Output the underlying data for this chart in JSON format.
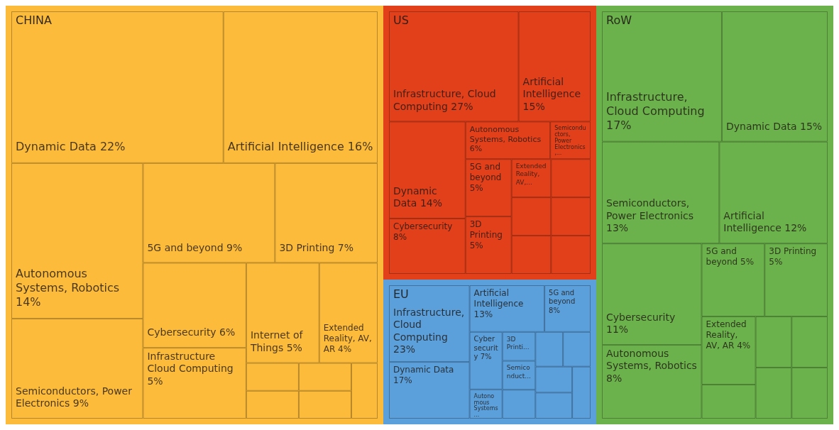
{
  "chart_data": {
    "type": "other",
    "annotations": [
      "CHINA",
      "US",
      "EU",
      "RoW"
    ],
    "categories": [
      "Dynamic Data",
      "Artificial Intelligence",
      "Autonomous Systems, Robotics",
      "Semiconductors, Power Electronics",
      "5G and beyond",
      "3D Printing",
      "Cybersecurity",
      "Infrastructure Cloud Computing",
      "Internet of Things",
      "Extended Reality, AV, AR",
      null,
      null,
      null,
      null,
      null,
      "Infrastructure, Cloud Computing",
      "Artificial Intelligence",
      "Dynamic Data",
      "Cybersecurity",
      "Autonomous Systems, Robotics",
      "Semiconductors, Power Electronics,...",
      "5G and beyond",
      "3D Printing",
      "Extended Reality, AV,...",
      null,
      null,
      null,
      null,
      null,
      "Infrastructure, Cloud Computing",
      "Dynamic Data",
      "Artificial Intelligence",
      "5G and beyond",
      "Cybersecurity",
      "Autonomous Systems...",
      "3D Printi...",
      "Semiconduct...",
      null,
      null,
      null,
      null,
      null,
      null,
      "Infrastructure, Cloud Computing",
      "Dynamic Data",
      "Semiconductors, Power Electronics",
      "Artificial Intelligence",
      "Cybersecurity",
      "Autonomous Systems, Robotics",
      "5G and beyond",
      "3D Printing",
      "Extended Reality, AV, AR",
      null,
      null,
      null,
      null,
      null
    ],
    "values": [
      22,
      16,
      14,
      9,
      9,
      7,
      6,
      5,
      5,
      4,
      null,
      null,
      null,
      null,
      null,
      27,
      15,
      14,
      8,
      6,
      null,
      5,
      5,
      null,
      null,
      null,
      null,
      null,
      null,
      23,
      17,
      13,
      8,
      7,
      null,
      null,
      null,
      null,
      null,
      null,
      null,
      null,
      null,
      17,
      15,
      13,
      12,
      11,
      8,
      5,
      5,
      4,
      null,
      null,
      null,
      null,
      null
    ],
    "value_labels": [
      "22%",
      "16%",
      "14%",
      "9%",
      "9%",
      "7%",
      "6%",
      "5%",
      "5%",
      "4%",
      null,
      null,
      null,
      null,
      null,
      "27%",
      "15%",
      "14%",
      "8%",
      "6%",
      null,
      "5%",
      "5%",
      null,
      null,
      null,
      null,
      null,
      null,
      "23%",
      "17%",
      "13%",
      "8%",
      "7%",
      null,
      null,
      null,
      null,
      null,
      null,
      null,
      null,
      null,
      "17%",
      "15%",
      "13%",
      "12%",
      "11%",
      "8%",
      "5%",
      "5%",
      "4%",
      null,
      null,
      null,
      null,
      null
    ],
    "colors": [
      "#fcbb3b",
      "#fcbb3b",
      "#fcbb3b",
      "#fcbb3b",
      "#fcbb3b",
      "#fcbb3b",
      "#fcbb3b",
      "#fcbb3b",
      "#fcbb3b",
      "#fcbb3b",
      "#fcbb3b",
      "#fcbb3b",
      "#fcbb3b",
      "#fcbb3b",
      "#fcbb3b",
      "#e2401b",
      "#e2401b",
      "#e2401b",
      "#e2401b",
      "#e2401b",
      "#e2401b",
      "#e2401b",
      "#e2401b",
      "#e2401b",
      "#e2401b",
      "#e2401b",
      "#e2401b",
      "#e2401b",
      "#e2401b",
      "#5b9fdb",
      "#5b9fdb",
      "#5b9fdb",
      "#5b9fdb",
      "#5b9fdb",
      "#5b9fdb",
      "#5b9fdb",
      "#5b9fdb",
      "#5b9fdb",
      "#5b9fdb",
      "#5b9fdb",
      "#5b9fdb",
      "#5b9fdb",
      "#5b9fdb",
      "#6cb24c",
      "#6cb24c",
      "#6cb24c",
      "#6cb24c",
      "#6cb24c",
      "#6cb24c",
      "#6cb24c",
      "#6cb24c",
      "#6cb24c",
      "#6cb24c",
      "#6cb24c",
      "#6cb24c",
      "#6cb24c",
      "#6cb24c"
    ]
  }
}
